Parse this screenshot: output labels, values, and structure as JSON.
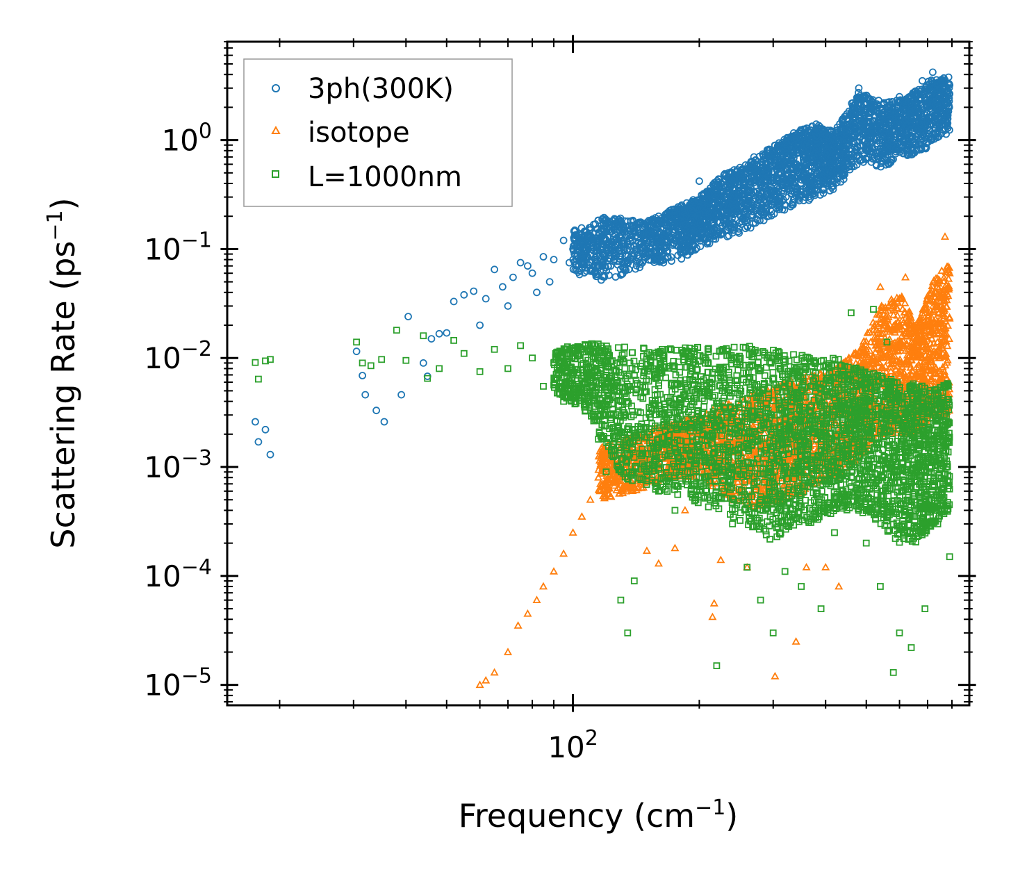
{
  "chart_data": {
    "type": "scatter",
    "title": "",
    "xlabel": "Frequency (cm",
    "xlabel_sup": "−1",
    "xlabel_end": ")",
    "ylabel": "Scattering Rate (ps",
    "ylabel_sup": "−1",
    "ylabel_end": ")",
    "xscale": "log",
    "yscale": "log",
    "xlim": [
      15,
      880
    ],
    "ylim": [
      6.5e-06,
      8
    ],
    "x_ticks": [
      {
        "value": 100,
        "base": "10",
        "exp": "2"
      }
    ],
    "y_ticks": [
      {
        "value": 1e-05,
        "base": "10",
        "exp": "−5"
      },
      {
        "value": 0.0001,
        "base": "10",
        "exp": "−4"
      },
      {
        "value": 0.001,
        "base": "10",
        "exp": "−3"
      },
      {
        "value": 0.01,
        "base": "10",
        "exp": "−2"
      },
      {
        "value": 0.1,
        "base": "10",
        "exp": "−1"
      },
      {
        "value": 1,
        "base": "10",
        "exp": "0"
      }
    ],
    "legend_position": "upper-left",
    "series": [
      {
        "name": "3ph(300K)",
        "marker": "circle",
        "color": "#1f77b4",
        "points": [
          [
            17.5,
            0.0026
          ],
          [
            17.8,
            0.0017
          ],
          [
            18.5,
            0.0022
          ],
          [
            19,
            0.0013
          ],
          [
            30.5,
            0.0115
          ],
          [
            31.5,
            0.0069
          ],
          [
            32,
            0.0046
          ],
          [
            34,
            0.0033
          ],
          [
            35.5,
            0.0026
          ],
          [
            40.5,
            0.024
          ],
          [
            39,
            0.0046
          ],
          [
            44,
            0.009
          ],
          [
            45,
            0.0068
          ],
          [
            46,
            0.015
          ],
          [
            48,
            0.0167
          ],
          [
            50,
            0.017
          ],
          [
            52,
            0.033
          ],
          [
            55,
            0.038
          ],
          [
            58,
            0.041
          ],
          [
            60,
            0.02
          ],
          [
            62,
            0.035
          ],
          [
            65,
            0.065
          ],
          [
            68,
            0.045
          ],
          [
            70,
            0.03
          ],
          [
            72,
            0.055
          ],
          [
            75,
            0.075
          ],
          [
            78,
            0.07
          ],
          [
            80,
            0.06
          ],
          [
            82,
            0.04
          ],
          [
            85,
            0.085
          ],
          [
            88,
            0.05
          ],
          [
            90,
            0.08
          ],
          [
            95,
            0.12
          ],
          [
            98,
            0.075
          ],
          [
            100,
            0.1
          ],
          [
            110,
            0.15
          ],
          [
            115,
            0.11
          ],
          [
            120,
            0.17
          ],
          [
            125,
            0.13
          ],
          [
            135,
            0.18
          ],
          [
            145,
            0.14
          ],
          [
            160,
            0.2
          ],
          [
            175,
            0.17
          ],
          [
            190,
            0.25
          ],
          [
            200,
            0.42
          ],
          [
            210,
            0.22
          ],
          [
            230,
            0.3
          ],
          [
            250,
            0.5
          ],
          [
            270,
            0.7
          ],
          [
            290,
            0.42
          ],
          [
            300,
            0.8
          ],
          [
            320,
            0.55
          ],
          [
            340,
            1.1
          ],
          [
            360,
            0.9
          ],
          [
            380,
            1.4
          ],
          [
            400,
            0.7
          ],
          [
            430,
            1.0
          ],
          [
            460,
            1.8
          ],
          [
            480,
            3.0
          ],
          [
            520,
            1.3
          ],
          [
            560,
            2.0
          ],
          [
            600,
            2.5
          ],
          [
            640,
            1.6
          ],
          [
            680,
            3.5
          ],
          [
            720,
            4.2
          ],
          [
            760,
            2.5
          ],
          [
            790,
            3.2
          ]
        ],
        "band": [
          [
            100,
            0.06,
            0.15
          ],
          [
            120,
            0.05,
            0.2
          ],
          [
            150,
            0.07,
            0.18
          ],
          [
            180,
            0.08,
            0.25
          ],
          [
            200,
            0.1,
            0.3
          ],
          [
            230,
            0.12,
            0.5
          ],
          [
            260,
            0.15,
            0.6
          ],
          [
            300,
            0.2,
            0.9
          ],
          [
            340,
            0.25,
            1.2
          ],
          [
            380,
            0.3,
            1.4
          ],
          [
            420,
            0.35,
            1.2
          ],
          [
            480,
            0.6,
            2.8
          ],
          [
            550,
            0.55,
            2.2
          ],
          [
            620,
            0.7,
            2.4
          ],
          [
            700,
            0.8,
            3.5
          ],
          [
            790,
            1.2,
            3.8
          ]
        ]
      },
      {
        "name": "isotope",
        "marker": "triangle",
        "color": "#ff7f0e",
        "points": [
          [
            60,
            1e-05
          ],
          [
            62,
            1.1e-05
          ],
          [
            65,
            1.3e-05
          ],
          [
            70,
            2e-05
          ],
          [
            74,
            3.5e-05
          ],
          [
            78,
            4.5e-05
          ],
          [
            82,
            6e-05
          ],
          [
            85,
            8e-05
          ],
          [
            90,
            0.00011
          ],
          [
            95,
            0.00016
          ],
          [
            100,
            0.00025
          ],
          [
            105,
            0.00035
          ],
          [
            110,
            0.0005
          ],
          [
            115,
            0.0008
          ],
          [
            120,
            0.0011
          ],
          [
            150,
            0.00017
          ],
          [
            160,
            0.00013
          ],
          [
            175,
            0.00018
          ],
          [
            185,
            0.0004
          ],
          [
            200,
            0.0013
          ],
          [
            215,
            4.2e-05
          ],
          [
            217,
            5.6e-05
          ],
          [
            225,
            0.00014
          ],
          [
            260,
            0.00012
          ],
          [
            303,
            1.2e-05
          ],
          [
            340,
            2.5e-05
          ],
          [
            360,
            0.00012
          ],
          [
            400,
            0.00012
          ],
          [
            430,
            8e-05
          ],
          [
            500,
            0.012
          ],
          [
            540,
            0.045
          ],
          [
            580,
            0.03
          ],
          [
            620,
            0.055
          ],
          [
            680,
            0.02
          ],
          [
            730,
            0.04
          ],
          [
            770,
            0.13
          ],
          [
            790,
            0.06
          ]
        ],
        "band": [
          [
            115,
            0.0005,
            0.0015
          ],
          [
            140,
            0.0006,
            0.002
          ],
          [
            170,
            0.0008,
            0.0025
          ],
          [
            200,
            0.0008,
            0.003
          ],
          [
            240,
            0.0005,
            0.004
          ],
          [
            280,
            0.0004,
            0.005
          ],
          [
            320,
            0.0005,
            0.006
          ],
          [
            360,
            0.0006,
            0.007
          ],
          [
            420,
            0.0008,
            0.008
          ],
          [
            480,
            0.0012,
            0.012
          ],
          [
            540,
            0.002,
            0.03
          ],
          [
            600,
            0.002,
            0.04
          ],
          [
            660,
            0.002,
            0.02
          ],
          [
            720,
            0.003,
            0.05
          ],
          [
            790,
            0.003,
            0.08
          ]
        ]
      },
      {
        "name": "L=1000nm",
        "marker": "square",
        "color": "#2ca02c",
        "points": [
          [
            17.5,
            0.0091
          ],
          [
            17.8,
            0.0064
          ],
          [
            18.5,
            0.0094
          ],
          [
            19,
            0.0097
          ],
          [
            30.5,
            0.014
          ],
          [
            31.5,
            0.009
          ],
          [
            33,
            0.0085
          ],
          [
            35,
            0.0097
          ],
          [
            38,
            0.018
          ],
          [
            40,
            0.0095
          ],
          [
            44,
            0.016
          ],
          [
            45,
            0.0065
          ],
          [
            48,
            0.008
          ],
          [
            52,
            0.0145
          ],
          [
            55,
            0.011
          ],
          [
            60,
            0.0075
          ],
          [
            65,
            0.012
          ],
          [
            70,
            0.008
          ],
          [
            75,
            0.013
          ],
          [
            80,
            0.01
          ],
          [
            85,
            0.0055
          ],
          [
            90,
            0.009
          ],
          [
            95,
            0.004
          ],
          [
            100,
            0.007
          ],
          [
            110,
            0.012
          ],
          [
            115,
            0.0018
          ],
          [
            120,
            0.0009
          ],
          [
            130,
            6e-05
          ],
          [
            135,
            3e-05
          ],
          [
            140,
            9e-05
          ],
          [
            150,
            0.0009
          ],
          [
            160,
            0.0006
          ],
          [
            175,
            0.0004
          ],
          [
            200,
            0.0008
          ],
          [
            220,
            1.5e-05
          ],
          [
            240,
            0.0003
          ],
          [
            260,
            0.00012
          ],
          [
            280,
            6e-05
          ],
          [
            300,
            3e-05
          ],
          [
            320,
            0.00011
          ],
          [
            350,
            8e-05
          ],
          [
            390,
            5e-05
          ],
          [
            420,
            0.00025
          ],
          [
            460,
            0.026
          ],
          [
            500,
            0.0002
          ],
          [
            540,
            8e-05
          ],
          [
            580,
            1.3e-05
          ],
          [
            600,
            3e-05
          ],
          [
            640,
            2.2e-05
          ],
          [
            690,
            5e-05
          ],
          [
            740,
            0.0003
          ],
          [
            790,
            0.00015
          ],
          [
            520,
            0.028
          ],
          [
            560,
            0.014
          ]
        ],
        "band": [
          [
            90,
            0.005,
            0.012
          ],
          [
            110,
            0.003,
            0.014
          ],
          [
            130,
            0.0008,
            0.013
          ],
          [
            160,
            0.0006,
            0.012
          ],
          [
            190,
            0.0005,
            0.013
          ],
          [
            220,
            0.0004,
            0.012
          ],
          [
            260,
            0.0003,
            0.013
          ],
          [
            300,
            0.0002,
            0.012
          ],
          [
            340,
            0.0003,
            0.011
          ],
          [
            380,
            0.0003,
            0.01
          ],
          [
            430,
            0.0004,
            0.01
          ],
          [
            480,
            0.0004,
            0.008
          ],
          [
            540,
            0.0003,
            0.007
          ],
          [
            600,
            0.0002,
            0.006
          ],
          [
            660,
            0.0002,
            0.006
          ],
          [
            720,
            0.0003,
            0.005
          ],
          [
            790,
            0.0004,
            0.006
          ]
        ]
      }
    ]
  }
}
